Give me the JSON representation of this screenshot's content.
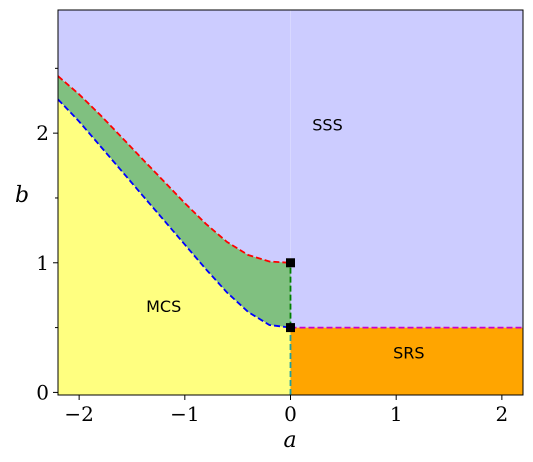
{
  "chart_data": {
    "type": "area",
    "xlabel": "a",
    "ylabel": "b",
    "xlim": [
      -2.2,
      2.2
    ],
    "ylim": [
      -0.02,
      2.95
    ],
    "x_ticks": [
      -2,
      -1,
      0,
      1,
      2
    ],
    "x_tick_labels": [
      "−2",
      "−1",
      "0",
      "1",
      "2"
    ],
    "y_ticks": [
      0,
      1,
      2
    ],
    "y_tick_labels": [
      "0",
      "1",
      "2"
    ],
    "y_minor_ticks": [
      0.5,
      1.5,
      2.5
    ],
    "regions": [
      {
        "name": "SSS",
        "color": "#ccccff",
        "label_at": [
          0.35,
          2.02
        ]
      },
      {
        "name": "MCS",
        "color": "#ffff80",
        "label_at": [
          -1.2,
          0.62
        ]
      },
      {
        "name": "SRS",
        "color": "#ffa500",
        "label_at": [
          1.12,
          0.26
        ]
      },
      {
        "name": "",
        "color": "#80c080"
      }
    ],
    "curves": [
      {
        "color": "#ff0000",
        "dash": true,
        "x": [
          -2.2,
          -2.0,
          -1.8,
          -1.6,
          -1.4,
          -1.2,
          -1.0,
          -0.8,
          -0.6,
          -0.4,
          -0.2,
          0.0
        ],
        "y": [
          2.44,
          2.3,
          2.14,
          1.97,
          1.8,
          1.63,
          1.46,
          1.3,
          1.16,
          1.06,
          1.01,
          1.0
        ]
      },
      {
        "color": "#0000ff",
        "dash": true,
        "x": [
          -2.2,
          -2.0,
          -1.8,
          -1.6,
          -1.4,
          -1.2,
          -1.0,
          -0.8,
          -0.6,
          -0.4,
          -0.2,
          0.0
        ],
        "y": [
          2.26,
          2.09,
          1.9,
          1.71,
          1.52,
          1.33,
          1.14,
          0.95,
          0.77,
          0.62,
          0.52,
          0.5
        ]
      },
      {
        "color": "#008000",
        "dash": true,
        "x": [
          0,
          0
        ],
        "y": [
          0.5,
          1.0
        ]
      },
      {
        "color": "#20a0a0",
        "dash": true,
        "x": [
          0,
          0
        ],
        "y": [
          -0.02,
          0.5
        ]
      },
      {
        "color": "#cc00cc",
        "dash": true,
        "x": [
          0,
          2.2
        ],
        "y": [
          0.5,
          0.5
        ]
      }
    ],
    "points": [
      {
        "x": 0,
        "y": 1.0,
        "color": "#000000"
      },
      {
        "x": 0,
        "y": 0.5,
        "color": "#000000"
      }
    ]
  }
}
